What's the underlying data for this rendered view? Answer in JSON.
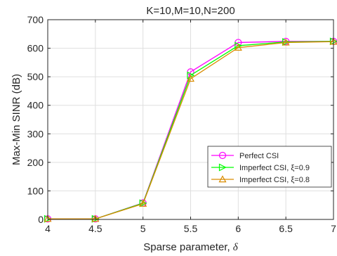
{
  "chart_data": {
    "type": "line",
    "title": "K=10,M=10,N=200",
    "xlabel": "Sparse parameter, ",
    "xlabel_symbol": "δ",
    "ylabel": "Max-Min SINR (dB)",
    "xlim": [
      4,
      7
    ],
    "ylim": [
      0,
      700
    ],
    "grid": true,
    "legend_position": "center-right",
    "x": [
      4,
      4.5,
      5,
      5.5,
      6,
      6.5,
      7
    ],
    "x_tick_labels": [
      "4",
      "4.5",
      "5",
      "5.5",
      "6",
      "6.5",
      "7"
    ],
    "y_ticks": [
      0,
      100,
      200,
      300,
      400,
      500,
      600,
      700
    ],
    "y_tick_labels": [
      "0",
      "100",
      "200",
      "300",
      "400",
      "500",
      "600",
      "700"
    ],
    "series": [
      {
        "name": "Perfect CSI",
        "color": "#ff00ff",
        "marker": "circle",
        "values": [
          2,
          2,
          58,
          517,
          620,
          624,
          624
        ]
      },
      {
        "name": "Imperfect CSI, ξ=0.9",
        "color": "#00ff00",
        "marker": "triangle-right",
        "values": [
          2,
          2,
          57,
          505,
          609,
          622,
          624
        ]
      },
      {
        "name": "Imperfect CSI, ξ=0.8",
        "color": "#d98c00",
        "marker": "triangle-up",
        "values": [
          2,
          2,
          55,
          493,
          602,
          620,
          623
        ]
      }
    ]
  }
}
